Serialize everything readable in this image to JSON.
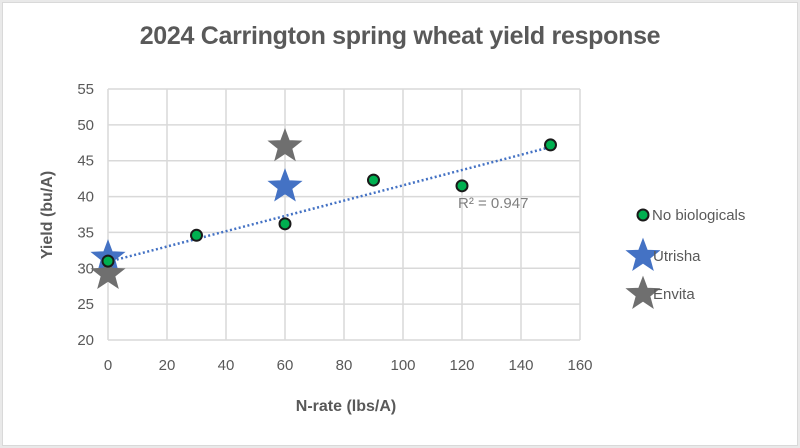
{
  "chart_data": {
    "type": "scatter",
    "title": "2024 Carrington spring wheat yield response",
    "xlabel": "N-rate (lbs/A)",
    "ylabel": "Yield (bu/A)",
    "xlim": [
      0,
      160
    ],
    "ylim": [
      20,
      55
    ],
    "x_ticks": [
      0,
      20,
      40,
      60,
      80,
      100,
      120,
      140,
      160
    ],
    "y_ticks": [
      20,
      25,
      30,
      35,
      40,
      45,
      50,
      55
    ],
    "grid": true,
    "legend_position": "right",
    "series": [
      {
        "name": "No biologicals",
        "marker": "circle",
        "color": "#00b050",
        "points": [
          {
            "x": 0,
            "y": 31.0
          },
          {
            "x": 30,
            "y": 34.6
          },
          {
            "x": 60,
            "y": 36.2
          },
          {
            "x": 90,
            "y": 42.3
          },
          {
            "x": 120,
            "y": 41.5
          },
          {
            "x": 150,
            "y": 47.2
          }
        ]
      },
      {
        "name": "Utrisha",
        "marker": "star",
        "color": "#4472c4",
        "points": [
          {
            "x": 0,
            "y": 31.5
          },
          {
            "x": 60,
            "y": 41.4
          }
        ]
      },
      {
        "name": "Envita",
        "marker": "star",
        "color": "#6f6f6f",
        "points": [
          {
            "x": 0,
            "y": 29.2
          },
          {
            "x": 60,
            "y": 47.0
          }
        ]
      }
    ],
    "trendline": {
      "series": "No biologicals",
      "type": "linear",
      "style": "dotted",
      "color": "#4472c4",
      "x_start": 0,
      "y_start": 30.9,
      "x_end": 150,
      "y_end": 46.9,
      "r_squared_label": "R² = 0.947"
    }
  }
}
